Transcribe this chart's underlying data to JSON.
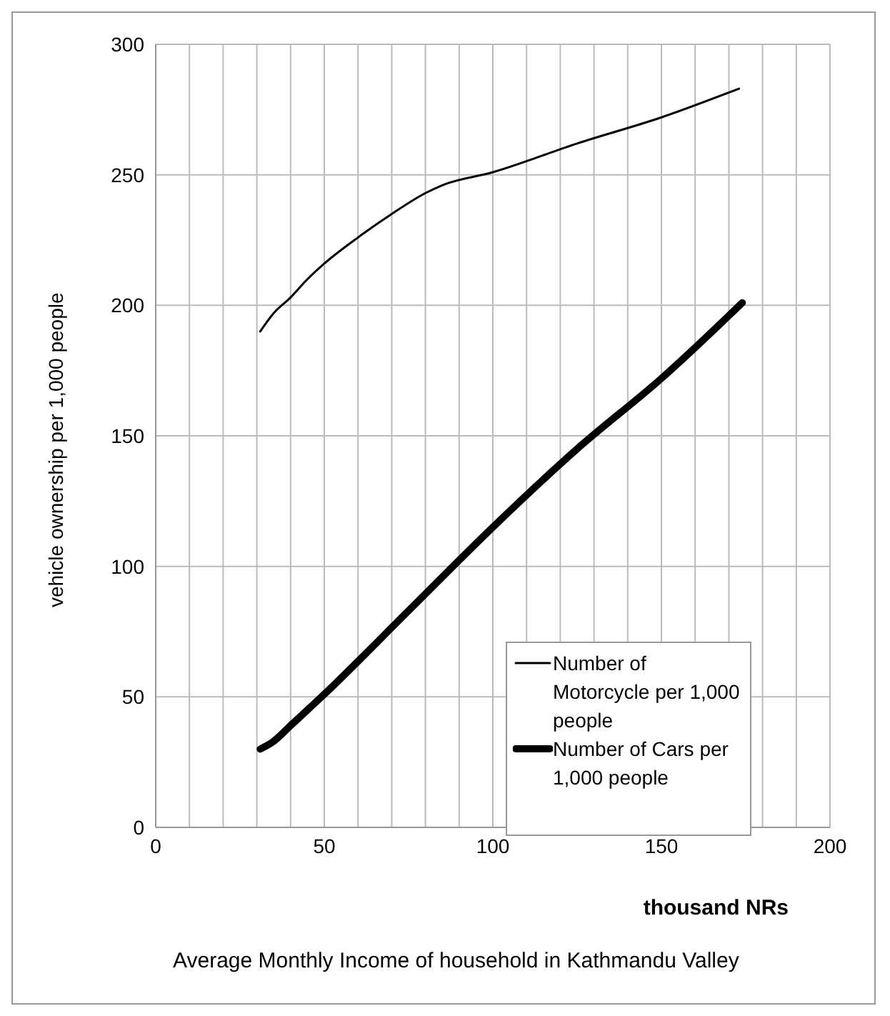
{
  "chart_data": {
    "type": "line",
    "xlabel": "thousand NRs",
    "ylabel": "vehicle ownership per 1,000 people",
    "annotations": [
      "Average Monthly Income  of household in Kathmandu Valley"
    ],
    "series": [
      {
        "name": "Number of Motorcycle per 1,000 people",
        "color": "#000000",
        "x": [
          31,
          35,
          40,
          45,
          50,
          60,
          70,
          80,
          85,
          100,
          125,
          150,
          173
        ],
        "values": [
          190,
          197,
          203,
          210,
          216,
          226,
          235,
          243,
          246,
          251,
          262,
          272,
          283
        ]
      },
      {
        "name": "Number of Cars per 1,000 people",
        "color": "#000000",
        "x": [
          31,
          35,
          40,
          50,
          75,
          100,
          125,
          150,
          174
        ],
        "values": [
          30,
          33,
          39,
          51,
          83,
          115,
          145,
          172,
          201
        ]
      }
    ],
    "xlim": [
      0,
      200
    ],
    "xticks": [
      0,
      {
        "value": 10,
        "label": null
      },
      {
        "value": 20,
        "label": null
      },
      {
        "value": 30,
        "label": null
      },
      {
        "value": 40,
        "label": null
      },
      50,
      {
        "value": 60,
        "label": null
      },
      {
        "value": 70,
        "label": null
      },
      {
        "value": 80,
        "label": null
      },
      {
        "value": 90,
        "label": null
      },
      100,
      {
        "value": 110,
        "label": null
      },
      {
        "value": 120,
        "label": null
      },
      {
        "value": 130,
        "label": null
      },
      {
        "value": 140,
        "label": null
      },
      150,
      {
        "value": 160,
        "label": null
      },
      {
        "value": 170,
        "label": null
      },
      {
        "value": 180,
        "label": null
      },
      {
        "value": 190,
        "label": null
      },
      200
    ],
    "ylim": [
      0,
      300
    ],
    "yticks": [
      0,
      50,
      100,
      150,
      200,
      250,
      300
    ],
    "grid": true,
    "legend": "bottom right",
    "marker": "none",
    "line_style": "solid"
  }
}
